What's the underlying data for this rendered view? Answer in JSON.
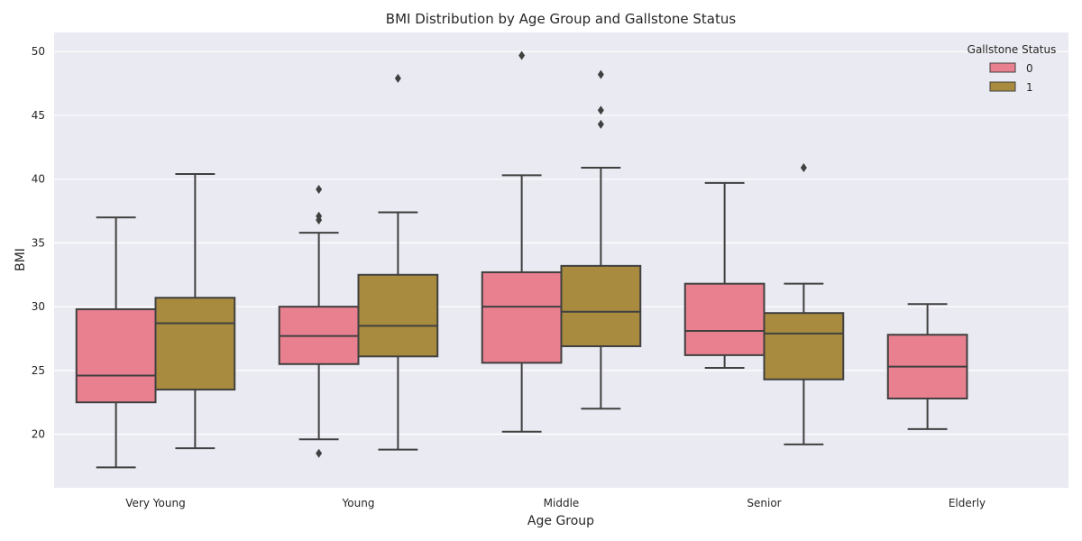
{
  "chart_data": {
    "type": "box",
    "title": "BMI Distribution by Age Group and Gallstone Status",
    "xlabel": "Age Group",
    "ylabel": "BMI",
    "categories": [
      "Very Young",
      "Young",
      "Middle",
      "Senior",
      "Elderly"
    ],
    "ylim": [
      15.8,
      51.5
    ],
    "yticks": [
      20,
      25,
      30,
      35,
      40,
      45,
      50
    ],
    "grid": true,
    "legend": {
      "title": "Gallstone Status",
      "position": "top-right"
    },
    "series": [
      {
        "name": "0",
        "color": "#e8808f",
        "boxes": [
          {
            "category": "Very Young",
            "whisker_low": 17.4,
            "q1": 22.5,
            "median": 24.6,
            "q3": 29.8,
            "whisker_high": 37.0,
            "outliers": []
          },
          {
            "category": "Young",
            "whisker_low": 19.6,
            "q1": 25.5,
            "median": 27.7,
            "q3": 30.0,
            "whisker_high": 35.8,
            "outliers": [
              18.5,
              36.8,
              37.1,
              39.2
            ]
          },
          {
            "category": "Middle",
            "whisker_low": 20.2,
            "q1": 25.6,
            "median": 30.0,
            "q3": 32.7,
            "whisker_high": 40.3,
            "outliers": [
              49.7
            ]
          },
          {
            "category": "Senior",
            "whisker_low": 25.2,
            "q1": 26.2,
            "median": 28.1,
            "q3": 31.8,
            "whisker_high": 39.7,
            "outliers": []
          },
          {
            "category": "Elderly",
            "whisker_low": 20.4,
            "q1": 22.8,
            "median": 25.3,
            "q3": 27.8,
            "whisker_high": 30.2,
            "outliers": []
          }
        ]
      },
      {
        "name": "1",
        "color": "#a88b3e",
        "boxes": [
          {
            "category": "Very Young",
            "whisker_low": 18.9,
            "q1": 23.5,
            "median": 28.7,
            "q3": 30.7,
            "whisker_high": 40.4,
            "outliers": []
          },
          {
            "category": "Young",
            "whisker_low": 18.8,
            "q1": 26.1,
            "median": 28.5,
            "q3": 32.5,
            "whisker_high": 37.4,
            "outliers": [
              47.9
            ]
          },
          {
            "category": "Middle",
            "whisker_low": 22.0,
            "q1": 26.9,
            "median": 29.6,
            "q3": 33.2,
            "whisker_high": 40.9,
            "outliers": [
              44.3,
              45.4,
              48.2
            ]
          },
          {
            "category": "Senior",
            "whisker_low": 19.2,
            "q1": 24.3,
            "median": 27.9,
            "q3": 29.5,
            "whisker_high": 31.8,
            "outliers": [
              40.9
            ]
          },
          null
        ]
      }
    ]
  },
  "style": {
    "plot_background": "#eaeaf2",
    "grid_color": "#ffffff",
    "line_color": "#404040"
  }
}
